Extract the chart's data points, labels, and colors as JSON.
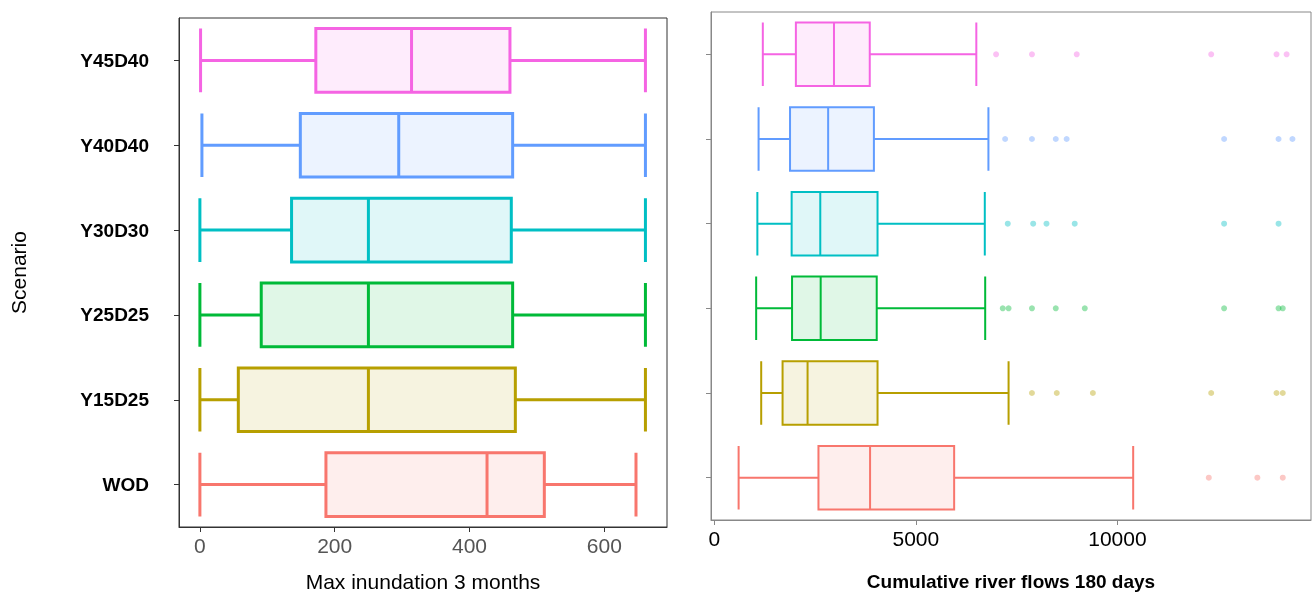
{
  "chart_data": [
    {
      "type": "box",
      "orientation": "horizontal",
      "xlabel": "Max inundation 3 months",
      "ylabel": "Scenario",
      "categories": [
        "Y45D40",
        "Y40D40",
        "Y30D30",
        "Y25D25",
        "Y15D25",
        "WOD"
      ],
      "colors": [
        "#f564e3",
        "#619cff",
        "#00bfc4",
        "#00ba38",
        "#b79f00",
        "#f8766d"
      ],
      "xlim": [
        -31,
        693
      ],
      "xticks": [
        0,
        200,
        400,
        600
      ],
      "boxes": [
        {
          "low": 1,
          "q1": 172,
          "median": 314,
          "q3": 460,
          "high": 661
        },
        {
          "low": 3,
          "q1": 149,
          "median": 295,
          "q3": 464,
          "high": 661
        },
        {
          "low": 0,
          "q1": 136,
          "median": 250,
          "q3": 462,
          "high": 661
        },
        {
          "low": 0,
          "q1": 91,
          "median": 250,
          "q3": 464,
          "high": 661
        },
        {
          "low": 0,
          "q1": 57,
          "median": 250,
          "q3": 468,
          "high": 661
        },
        {
          "low": 0,
          "q1": 187,
          "median": 426,
          "q3": 511,
          "high": 647
        }
      ]
    },
    {
      "type": "box",
      "orientation": "horizontal",
      "xlabel": "Cumulative river flows 180 days",
      "categories": [
        null,
        null,
        null,
        null,
        null,
        null
      ],
      "colors": [
        "#f564e3",
        "#619cff",
        "#00bfc4",
        "#00ba38",
        "#b79f00",
        "#f8766d"
      ],
      "xlim": [
        -80,
        14800
      ],
      "xticks": [
        0,
        5000,
        10000
      ],
      "tick_labels": "x",
      "boxes": [
        {
          "low": 1205,
          "q1": 2025,
          "median": 2970,
          "q3": 3857,
          "high": 6500,
          "outliers": [
            6990,
            7880,
            8990,
            12325,
            13945,
            14195
          ]
        },
        {
          "low": 1100,
          "q1": 1880,
          "median": 2825,
          "q3": 3960,
          "high": 6800,
          "outliers": [
            7215,
            7880,
            8470,
            8740,
            12645,
            13995,
            14340
          ]
        },
        {
          "low": 1070,
          "q1": 1920,
          "median": 2630,
          "q3": 4050,
          "high": 6710,
          "outliers": [
            7280,
            7910,
            8240,
            8940,
            12645,
            13995
          ]
        },
        {
          "low": 1040,
          "q1": 1930,
          "median": 2640,
          "q3": 4030,
          "high": 6720,
          "outliers": [
            7155,
            7300,
            7880,
            8470,
            9190,
            12645,
            13995,
            14100
          ]
        },
        {
          "low": 1165,
          "q1": 1695,
          "median": 2315,
          "q3": 4050,
          "high": 7300,
          "outliers": [
            7880,
            8495,
            9390,
            12325,
            13945,
            14100
          ]
        },
        {
          "low": 605,
          "q1": 2585,
          "median": 3865,
          "q3": 5950,
          "high": 10390,
          "outliers": [
            12265,
            13470,
            14100
          ]
        }
      ]
    }
  ]
}
